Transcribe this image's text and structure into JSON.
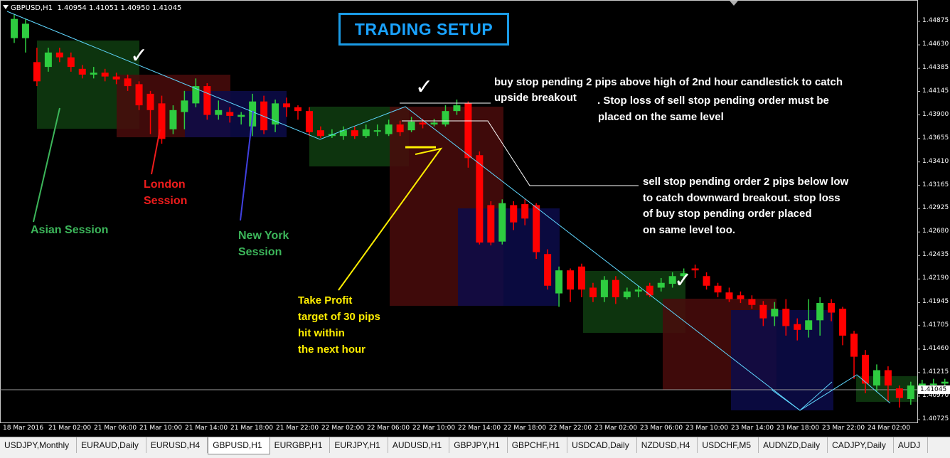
{
  "chart_header": {
    "symbol_timeframe": "GBPUSD,H1",
    "ohlc": "1.40954 1.41051 1.40950 1.41045"
  },
  "title": "TRADING SETUP",
  "current_price": "1.41045",
  "price_axis": [
    "1.44875",
    "1.44630",
    "1.44385",
    "1.44145",
    "1.43900",
    "1.43655",
    "1.43410",
    "1.43165",
    "1.42925",
    "1.42680",
    "1.42435",
    "1.42190",
    "1.41945",
    "1.41705",
    "1.41460",
    "1.41215",
    "1.40970",
    "1.40725"
  ],
  "time_axis": [
    "18 Mar 2016",
    "21 Mar 02:00",
    "21 Mar 06:00",
    "21 Mar 10:00",
    "21 Mar 14:00",
    "21 Mar 18:00",
    "21 Mar 22:00",
    "22 Mar 02:00",
    "22 Mar 06:00",
    "22 Mar 10:00",
    "22 Mar 14:00",
    "22 Mar 18:00",
    "22 Mar 22:00",
    "23 Mar 02:00",
    "23 Mar 06:00",
    "23 Mar 10:00",
    "23 Mar 14:00",
    "23 Mar 18:00",
    "23 Mar 22:00",
    "24 Mar 02:00"
  ],
  "annotations": {
    "buy_stop_1": "buy stop pending 2 pips above high of 2nd hour candlestick to catch",
    "buy_stop_2": "upside breakout",
    "buy_stop_3": ". Stop loss of sell stop pending order must be",
    "buy_stop_4": "placed on the same level",
    "sell_stop_1": "sell stop pending order 2 pips below low",
    "sell_stop_2": "to catch downward breakout. stop loss",
    "sell_stop_3": "of buy stop pending order placed",
    "sell_stop_4": "on same level too.",
    "asian_session": "Asian Session",
    "london_1": "London",
    "london_2": "Session",
    "newyork_1": "New York",
    "newyork_2": "Session",
    "tp_1": "Take Profit",
    "tp_2": "target of 30 pips",
    "tp_3": "hit within",
    "tp_4": "the next hour"
  },
  "tabs": [
    {
      "label": "USDJPY,Monthly",
      "active": false
    },
    {
      "label": "EURAUD,Daily",
      "active": false
    },
    {
      "label": "EURUSD,H4",
      "active": false
    },
    {
      "label": "GBPUSD,H1",
      "active": true
    },
    {
      "label": "EURGBP,H1",
      "active": false
    },
    {
      "label": "EURJPY,H1",
      "active": false
    },
    {
      "label": "AUDUSD,H1",
      "active": false
    },
    {
      "label": "GBPJPY,H1",
      "active": false
    },
    {
      "label": "GBPCHF,H1",
      "active": false
    },
    {
      "label": "USDCAD,Daily",
      "active": false
    },
    {
      "label": "NZDUSD,H4",
      "active": false
    },
    {
      "label": "USDCHF,M5",
      "active": false
    },
    {
      "label": "AUDNZD,Daily",
      "active": false
    },
    {
      "label": "CADJPY,Daily",
      "active": false
    },
    {
      "label": "AUDJ",
      "active": false
    }
  ],
  "colors": {
    "bull": "#2ecc40",
    "bear": "#ff0000",
    "asian": "#0f3d10",
    "london": "#4a0c0c",
    "newyork": "#0c0c4a",
    "trend": "#5fd7ff",
    "tp_line": "#ffee00"
  },
  "chart_data": {
    "type": "candlestick",
    "title": "GBPUSD,H1",
    "ylim": [
      1.40725,
      1.45
    ],
    "candles": [
      {
        "o": 1.447,
        "c": 1.449,
        "h": 1.4495,
        "l": 1.4465
      },
      {
        "o": 1.447,
        "c": 1.4485,
        "h": 1.449,
        "l": 1.4455
      },
      {
        "o": 1.4445,
        "c": 1.4425,
        "h": 1.446,
        "l": 1.442
      },
      {
        "o": 1.444,
        "c": 1.4455,
        "h": 1.446,
        "l": 1.4435
      },
      {
        "o": 1.4455,
        "c": 1.445,
        "h": 1.446,
        "l": 1.4445
      },
      {
        "o": 1.445,
        "c": 1.444,
        "h": 1.4455,
        "l": 1.4435
      },
      {
        "o": 1.4438,
        "c": 1.4432,
        "h": 1.4442,
        "l": 1.4428
      },
      {
        "o": 1.4432,
        "c": 1.4434,
        "h": 1.444,
        "l": 1.4428
      },
      {
        "o": 1.4434,
        "c": 1.443,
        "h": 1.4438,
        "l": 1.4425
      },
      {
        "o": 1.443,
        "c": 1.4427,
        "h": 1.4434,
        "l": 1.4422
      },
      {
        "o": 1.4428,
        "c": 1.442,
        "h": 1.4432,
        "l": 1.4415
      },
      {
        "o": 1.4422,
        "c": 1.44,
        "h": 1.4425,
        "l": 1.4395
      },
      {
        "o": 1.4412,
        "c": 1.4395,
        "h": 1.4415,
        "l": 1.437
      },
      {
        "o": 1.4402,
        "c": 1.4365,
        "h": 1.441,
        "l": 1.436
      },
      {
        "o": 1.4375,
        "c": 1.4395,
        "h": 1.44,
        "l": 1.437
      },
      {
        "o": 1.4393,
        "c": 1.4405,
        "h": 1.4415,
        "l": 1.4375
      },
      {
        "o": 1.4402,
        "c": 1.442,
        "h": 1.4428,
        "l": 1.4398
      },
      {
        "o": 1.442,
        "c": 1.439,
        "h": 1.4423,
        "l": 1.4385
      },
      {
        "o": 1.439,
        "c": 1.4395,
        "h": 1.4405,
        "l": 1.4385
      },
      {
        "o": 1.4393,
        "c": 1.4389,
        "h": 1.4398,
        "l": 1.4382
      },
      {
        "o": 1.4388,
        "c": 1.439,
        "h": 1.4393,
        "l": 1.438
      },
      {
        "o": 1.4378,
        "c": 1.4404,
        "h": 1.4412,
        "l": 1.4368
      },
      {
        "o": 1.4404,
        "c": 1.4374,
        "h": 1.441,
        "l": 1.437
      },
      {
        "o": 1.438,
        "c": 1.4402,
        "h": 1.4406,
        "l": 1.4372
      },
      {
        "o": 1.4402,
        "c": 1.4398,
        "h": 1.4408,
        "l": 1.4388
      },
      {
        "o": 1.4398,
        "c": 1.4394,
        "h": 1.44,
        "l": 1.4385
      },
      {
        "o": 1.4394,
        "c": 1.4372,
        "h": 1.4398,
        "l": 1.4368
      },
      {
        "o": 1.4374,
        "c": 1.4368,
        "h": 1.4378,
        "l": 1.4366
      },
      {
        "o": 1.4368,
        "c": 1.437,
        "h": 1.4375,
        "l": 1.4366
      },
      {
        "o": 1.4368,
        "c": 1.4374,
        "h": 1.4378,
        "l": 1.4364
      },
      {
        "o": 1.4374,
        "c": 1.4368,
        "h": 1.4378,
        "l": 1.4365
      },
      {
        "o": 1.4368,
        "c": 1.4375,
        "h": 1.438,
        "l": 1.4366
      },
      {
        "o": 1.4374,
        "c": 1.4374,
        "h": 1.438,
        "l": 1.4368
      },
      {
        "o": 1.437,
        "c": 1.438,
        "h": 1.4385,
        "l": 1.4368
      },
      {
        "o": 1.438,
        "c": 1.4372,
        "h": 1.4384,
        "l": 1.4368
      },
      {
        "o": 1.4374,
        "c": 1.4383,
        "h": 1.4388,
        "l": 1.4372
      },
      {
        "o": 1.4382,
        "c": 1.438,
        "h": 1.4386,
        "l": 1.4376
      },
      {
        "o": 1.438,
        "c": 1.4382,
        "h": 1.4386,
        "l": 1.4378
      },
      {
        "o": 1.438,
        "c": 1.4394,
        "h": 1.44,
        "l": 1.4378
      },
      {
        "o": 1.4394,
        "c": 1.44,
        "h": 1.4406,
        "l": 1.439
      },
      {
        "o": 1.4402,
        "c": 1.4345,
        "h": 1.4404,
        "l": 1.4335
      },
      {
        "o": 1.4348,
        "c": 1.4257,
        "h": 1.4352,
        "l": 1.4255
      },
      {
        "o": 1.4296,
        "c": 1.4257,
        "h": 1.43,
        "l": 1.4254
      },
      {
        "o": 1.4258,
        "c": 1.4298,
        "h": 1.4302,
        "l": 1.4255
      },
      {
        "o": 1.4296,
        "c": 1.4278,
        "h": 1.43,
        "l": 1.427
      },
      {
        "o": 1.4297,
        "c": 1.4282,
        "h": 1.4302,
        "l": 1.4275
      },
      {
        "o": 1.4296,
        "c": 1.4247,
        "h": 1.4298,
        "l": 1.424
      },
      {
        "o": 1.4245,
        "c": 1.4212,
        "h": 1.425,
        "l": 1.4208
      },
      {
        "o": 1.4204,
        "c": 1.4228,
        "h": 1.4232,
        "l": 1.419
      },
      {
        "o": 1.4228,
        "c": 1.4208,
        "h": 1.423,
        "l": 1.4195
      },
      {
        "o": 1.4232,
        "c": 1.4208,
        "h": 1.4235,
        "l": 1.42
      },
      {
        "o": 1.421,
        "c": 1.42,
        "h": 1.4215,
        "l": 1.4195
      },
      {
        "o": 1.42,
        "c": 1.4218,
        "h": 1.4222,
        "l": 1.4195
      },
      {
        "o": 1.4218,
        "c": 1.42,
        "h": 1.4222,
        "l": 1.4193
      },
      {
        "o": 1.42,
        "c": 1.4206,
        "h": 1.421,
        "l": 1.4198
      },
      {
        "o": 1.4206,
        "c": 1.4208,
        "h": 1.4212,
        "l": 1.42
      },
      {
        "o": 1.4212,
        "c": 1.4202,
        "h": 1.4215,
        "l": 1.42
      },
      {
        "o": 1.421,
        "c": 1.4215,
        "h": 1.422,
        "l": 1.4206
      },
      {
        "o": 1.4214,
        "c": 1.4222,
        "h": 1.4226,
        "l": 1.421
      },
      {
        "o": 1.4222,
        "c": 1.4225,
        "h": 1.423,
        "l": 1.4218
      },
      {
        "o": 1.423,
        "c": 1.4228,
        "h": 1.4234,
        "l": 1.422
      },
      {
        "o": 1.4222,
        "c": 1.4212,
        "h": 1.4226,
        "l": 1.4208
      },
      {
        "o": 1.4212,
        "c": 1.4205,
        "h": 1.4215,
        "l": 1.42
      },
      {
        "o": 1.4205,
        "c": 1.4198,
        "h": 1.421,
        "l": 1.4195
      },
      {
        "o": 1.4202,
        "c": 1.4198,
        "h": 1.4206,
        "l": 1.4194
      },
      {
        "o": 1.4198,
        "c": 1.4192,
        "h": 1.4202,
        "l": 1.4188
      },
      {
        "o": 1.4192,
        "c": 1.4178,
        "h": 1.4196,
        "l": 1.417
      },
      {
        "o": 1.418,
        "c": 1.4188,
        "h": 1.4195,
        "l": 1.417
      },
      {
        "o": 1.4188,
        "c": 1.417,
        "h": 1.4198,
        "l": 1.416
      },
      {
        "o": 1.4172,
        "c": 1.4166,
        "h": 1.4178,
        "l": 1.4155
      },
      {
        "o": 1.4166,
        "c": 1.4176,
        "h": 1.4198,
        "l": 1.4158
      },
      {
        "o": 1.4176,
        "c": 1.4194,
        "h": 1.42,
        "l": 1.416
      },
      {
        "o": 1.4194,
        "c": 1.4184,
        "h": 1.4198,
        "l": 1.4175
      },
      {
        "o": 1.4188,
        "c": 1.416,
        "h": 1.419,
        "l": 1.415
      },
      {
        "o": 1.4162,
        "c": 1.4138,
        "h": 1.4165,
        "l": 1.4115
      },
      {
        "o": 1.414,
        "c": 1.411,
        "h": 1.4145,
        "l": 1.41
      },
      {
        "o": 1.4108,
        "c": 1.4124,
        "h": 1.413,
        "l": 1.4102
      },
      {
        "o": 1.4124,
        "c": 1.4108,
        "h": 1.4128,
        "l": 1.4092
      },
      {
        "o": 1.4105,
        "c": 1.4095,
        "h": 1.4108,
        "l": 1.4085
      },
      {
        "o": 1.4094,
        "c": 1.4108,
        "h": 1.4112,
        "l": 1.4088
      },
      {
        "o": 1.4106,
        "c": 1.411,
        "h": 1.4114,
        "l": 1.41
      },
      {
        "o": 1.411,
        "c": 1.411,
        "h": 1.4115,
        "l": 1.4103
      },
      {
        "o": 1.411,
        "c": 1.4112,
        "h": 1.4115,
        "l": 1.4104
      },
      {
        "o": 1.4112,
        "c": 1.4105,
        "h": 1.4115,
        "l": 1.41
      },
      {
        "o": 1.4114,
        "c": 1.4118,
        "h": 1.4122,
        "l": 1.411
      },
      {
        "o": 1.4116,
        "c": 1.4118,
        "h": 1.4122,
        "l": 1.411
      },
      {
        "o": 1.4118,
        "c": 1.4112,
        "h": 1.412,
        "l": 1.4108
      },
      {
        "o": 1.4112,
        "c": 1.4105,
        "h": 1.4116,
        "l": 1.41
      },
      {
        "o": 1.4106,
        "c": 1.41,
        "h": 1.4108,
        "l": 1.4096
      },
      {
        "o": 1.4102,
        "c": 1.4092,
        "h": 1.4105,
        "l": 1.409
      },
      {
        "o": 1.4095,
        "c": 1.4104,
        "h": 1.4108,
        "l": 1.4095
      }
    ]
  }
}
